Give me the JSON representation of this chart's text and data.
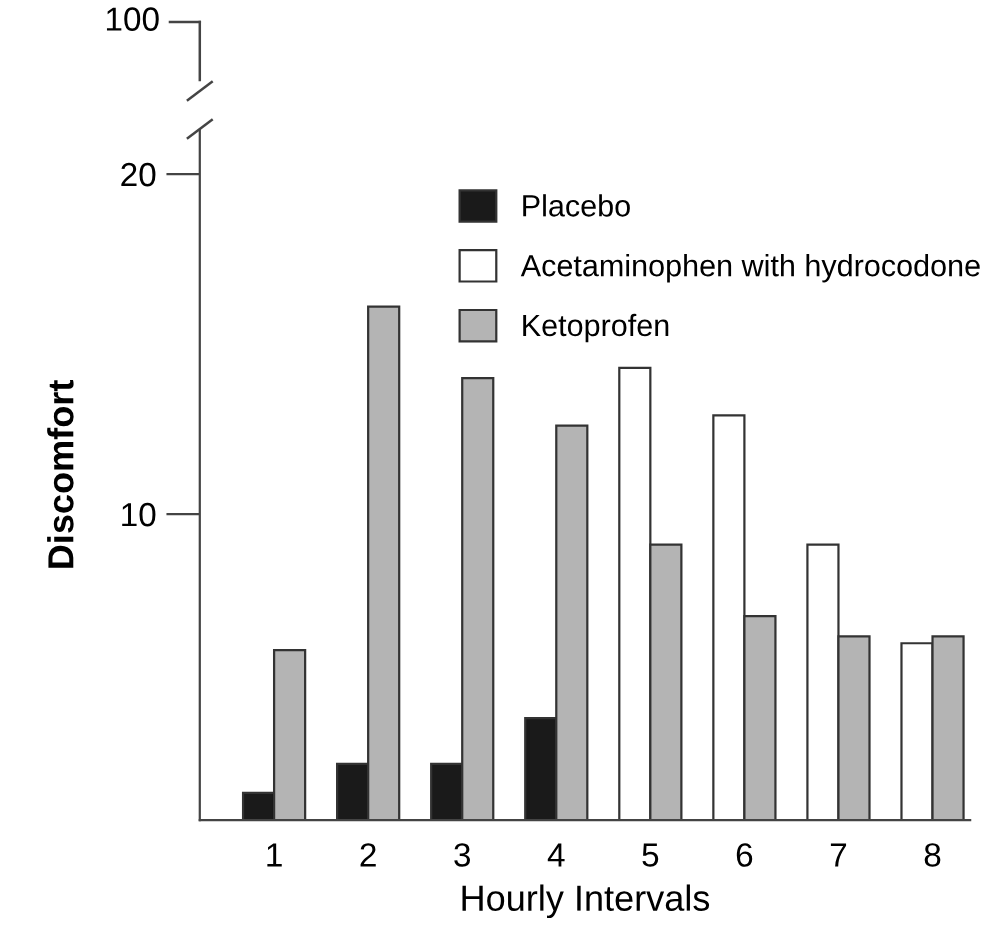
{
  "chart_data": {
    "type": "bar",
    "xlabel": "Hourly Intervals",
    "ylabel": "Discomfort",
    "categories": [
      "1",
      "2",
      "3",
      "4",
      "5",
      "6",
      "7",
      "8"
    ],
    "series": [
      {
        "name": "Placebo",
        "color": "#1a1a1a",
        "values": [
          1.8,
          2.65,
          2.65,
          4.0,
          null,
          null,
          null,
          null
        ]
      },
      {
        "name": "Acetaminophen with hydrocodone",
        "color": "#ffffff",
        "values": [
          null,
          null,
          null,
          null,
          14.3,
          12.9,
          9.1,
          6.2
        ]
      },
      {
        "name": "Ketoprofen",
        "color": "#b4b4b4",
        "values": [
          6.0,
          16.1,
          14.0,
          12.6,
          9.1,
          7.0,
          6.4,
          6.4
        ]
      }
    ],
    "ylim": [
      1,
      21.3
    ],
    "yticks": [
      10,
      20
    ],
    "annotations": [
      "100"
    ],
    "legend": "top right",
    "grid": false
  }
}
